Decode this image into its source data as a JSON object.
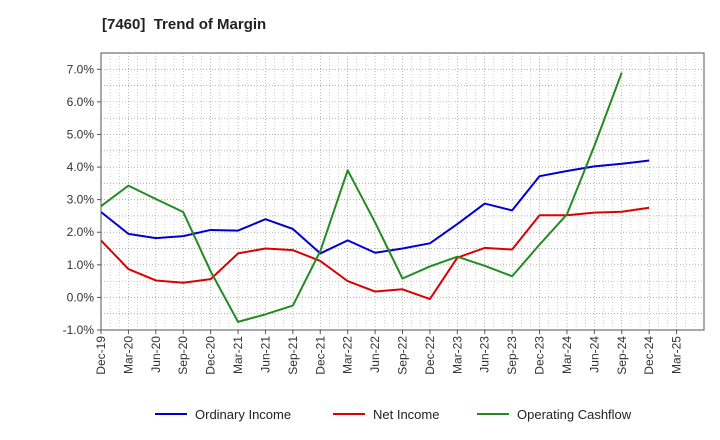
{
  "chart_data": {
    "type": "line",
    "title": "[7460]  Trend of Margin",
    "xlabel": "",
    "ylabel": "",
    "categories": [
      "Dec-19",
      "Mar-20",
      "Jun-20",
      "Sep-20",
      "Dec-20",
      "Mar-21",
      "Jun-21",
      "Sep-21",
      "Dec-21",
      "Mar-22",
      "Jun-22",
      "Sep-22",
      "Dec-22",
      "Mar-23",
      "Jun-23",
      "Sep-23",
      "Dec-23",
      "Mar-24",
      "Jun-24",
      "Sep-24",
      "Dec-24",
      "Mar-25"
    ],
    "ylim": [
      -1.0,
      7.5
    ],
    "yticks": [
      -1.0,
      0.0,
      1.0,
      2.0,
      3.0,
      4.0,
      5.0,
      6.0,
      7.0
    ],
    "ytick_labels": [
      "-1.0%",
      "0.0%",
      "1.0%",
      "2.0%",
      "3.0%",
      "4.0%",
      "5.0%",
      "6.0%",
      "7.0%"
    ],
    "grid": true,
    "legend_position": "bottom",
    "series": [
      {
        "name": "Ordinary Income",
        "color": "#0000cc",
        "values": [
          2.62,
          1.95,
          1.82,
          1.88,
          2.07,
          2.05,
          2.4,
          2.1,
          1.35,
          1.75,
          1.37,
          1.5,
          1.66,
          2.25,
          2.88,
          2.67,
          3.72,
          3.88,
          4.02,
          4.1,
          4.2,
          null
        ]
      },
      {
        "name": "Net Income",
        "color": "#dd0000",
        "values": [
          1.75,
          0.87,
          0.52,
          0.45,
          0.56,
          1.35,
          1.5,
          1.45,
          1.12,
          0.5,
          0.18,
          0.25,
          -0.05,
          1.22,
          1.52,
          1.47,
          2.52,
          2.52,
          2.6,
          2.63,
          2.75,
          null
        ]
      },
      {
        "name": "Operating Cashflow",
        "color": "#228b22",
        "values": [
          2.8,
          3.43,
          3.02,
          2.62,
          0.8,
          -0.75,
          -0.52,
          -0.25,
          1.42,
          3.9,
          2.3,
          0.58,
          0.95,
          1.25,
          0.97,
          0.65,
          1.62,
          2.55,
          4.65,
          6.9,
          null,
          null
        ]
      }
    ]
  }
}
